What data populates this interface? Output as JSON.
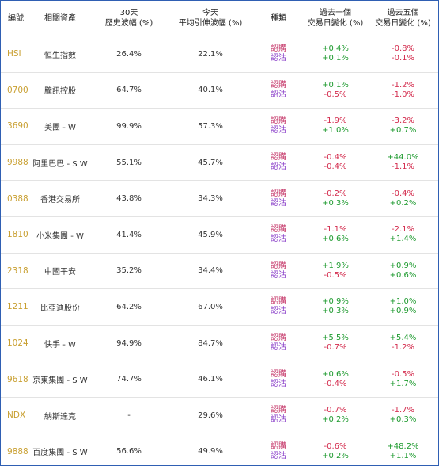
{
  "columns": {
    "code": "編號",
    "asset": "相關資產",
    "hist_vol": [
      "30天",
      "歷史波幅 (%)"
    ],
    "implied_vol": [
      "今天",
      "平均引伸波幅 (%)"
    ],
    "type": "種類",
    "chg_1d": [
      "過去一個",
      "交易日變化 (%)"
    ],
    "chg_5d": [
      "過去五個",
      "交易日變化 (%)"
    ]
  },
  "type_labels": {
    "bull": "認購",
    "bear": "認沽"
  },
  "rows": [
    {
      "code": "HSI",
      "name": "恒生指數",
      "hist": "26.4%",
      "implied": "22.1%",
      "d1_bull": "+0.4%",
      "d1_bear": "+0.1%",
      "d5_bull": "-0.8%",
      "d5_bear": "-0.1%"
    },
    {
      "code": "0700",
      "name": "騰訊控股",
      "hist": "64.7%",
      "implied": "40.1%",
      "d1_bull": "+0.1%",
      "d1_bear": "-0.5%",
      "d5_bull": "-1.2%",
      "d5_bear": "-1.0%"
    },
    {
      "code": "3690",
      "name": "美團 - W",
      "hist": "99.9%",
      "implied": "57.3%",
      "d1_bull": "-1.9%",
      "d1_bear": "+1.0%",
      "d5_bull": "-3.2%",
      "d5_bear": "+0.7%"
    },
    {
      "code": "9988",
      "name": "阿里巴巴 - S W",
      "hist": "55.1%",
      "implied": "45.7%",
      "d1_bull": "-0.4%",
      "d1_bear": "-0.4%",
      "d5_bull": "+44.0%",
      "d5_bear": "-1.1%"
    },
    {
      "code": "0388",
      "name": "香港交易所",
      "hist": "43.8%",
      "implied": "34.3%",
      "d1_bull": "-0.2%",
      "d1_bear": "+0.3%",
      "d5_bull": "-0.4%",
      "d5_bear": "+0.2%"
    },
    {
      "code": "1810",
      "name": "小米集團 - W",
      "hist": "41.4%",
      "implied": "45.9%",
      "d1_bull": "-1.1%",
      "d1_bear": "+0.6%",
      "d5_bull": "-2.1%",
      "d5_bear": "+1.4%"
    },
    {
      "code": "2318",
      "name": "中國平安",
      "hist": "35.2%",
      "implied": "34.4%",
      "d1_bull": "+1.9%",
      "d1_bear": "-0.5%",
      "d5_bull": "+0.9%",
      "d5_bear": "+0.6%"
    },
    {
      "code": "1211",
      "name": "比亞迪股份",
      "hist": "64.2%",
      "implied": "67.0%",
      "d1_bull": "+0.9%",
      "d1_bear": "+0.3%",
      "d5_bull": "+1.0%",
      "d5_bear": "+0.9%"
    },
    {
      "code": "1024",
      "name": "快手 - W",
      "hist": "94.9%",
      "implied": "84.7%",
      "d1_bull": "+5.5%",
      "d1_bear": "-0.7%",
      "d5_bull": "+5.4%",
      "d5_bear": "-1.2%"
    },
    {
      "code": "9618",
      "name": "京東集團 - S W",
      "hist": "74.7%",
      "implied": "46.1%",
      "d1_bull": "+0.6%",
      "d1_bear": "-0.4%",
      "d5_bull": "-0.5%",
      "d5_bear": "+1.7%"
    },
    {
      "code": "NDX",
      "name": "納斯達克",
      "hist": "-",
      "implied": "29.6%",
      "d1_bull": "-0.7%",
      "d1_bear": "+0.2%",
      "d5_bull": "-1.7%",
      "d5_bear": "+0.3%"
    },
    {
      "code": "9888",
      "name": "百度集團 - S W",
      "hist": "56.6%",
      "implied": "49.9%",
      "d1_bull": "-0.6%",
      "d1_bear": "+0.2%",
      "d5_bull": "+48.2%",
      "d5_bear": "+1.1%"
    }
  ],
  "colors": {
    "up": "#1d9a2e",
    "down": "#d32a4c",
    "code": "#c9a032",
    "bull": "#c63a6b",
    "bear": "#8a3fc9",
    "frame": "#2f5fb3"
  }
}
